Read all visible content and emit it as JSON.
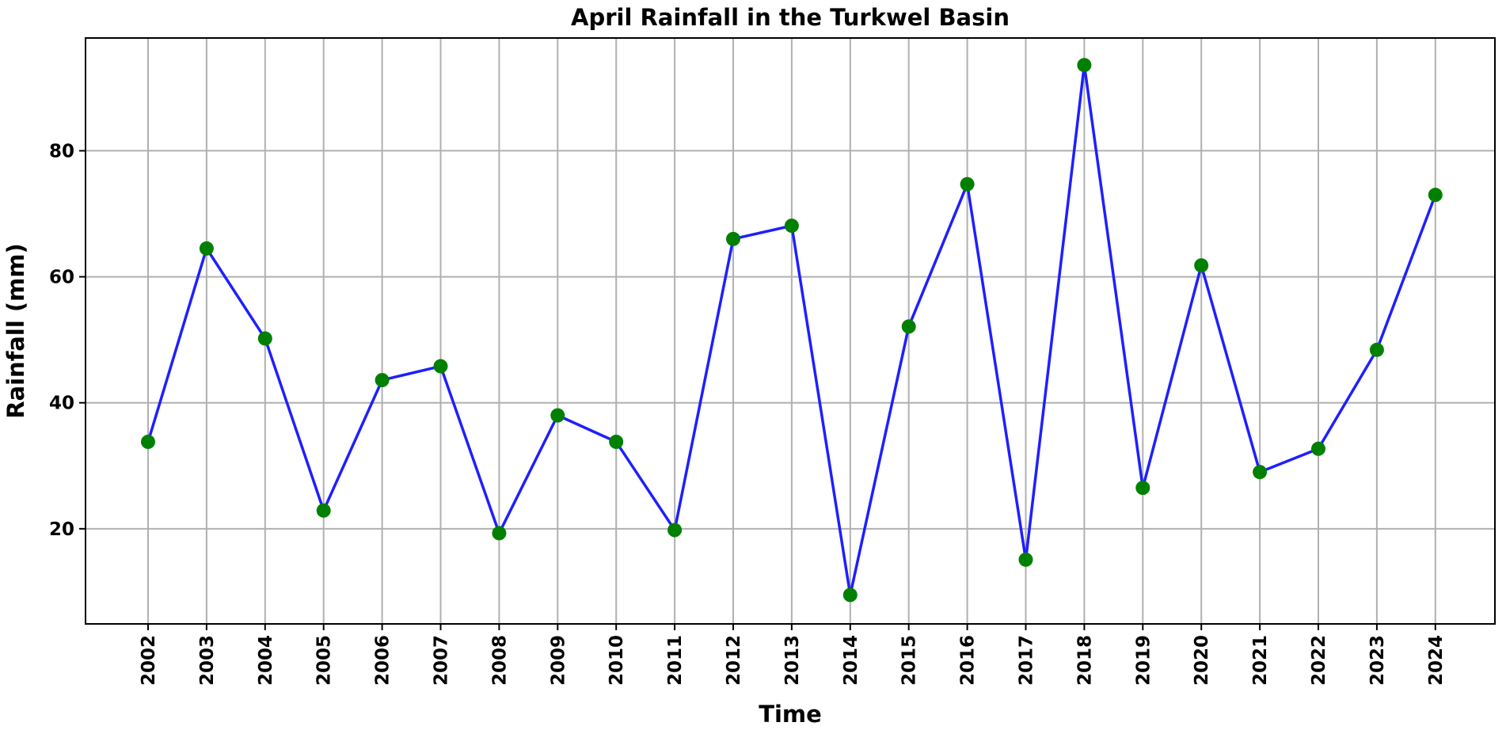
{
  "chart_data": {
    "type": "line",
    "title": "April Rainfall in the Turkwel Basin",
    "xlabel": "Time",
    "ylabel": "Rainfall (mm)",
    "x": [
      "2002",
      "2003",
      "2004",
      "2005",
      "2006",
      "2007",
      "2008",
      "2009",
      "2010",
      "2011",
      "2012",
      "2013",
      "2014",
      "2015",
      "2016",
      "2017",
      "2018",
      "2019",
      "2020",
      "2021",
      "2022",
      "2023",
      "2024"
    ],
    "series": [
      {
        "values": [
          33.8,
          64.5,
          50.2,
          22.9,
          43.6,
          45.8,
          19.3,
          38.0,
          33.8,
          19.8,
          66.0,
          68.1,
          9.5,
          52.1,
          74.7,
          15.1,
          93.6,
          26.5,
          61.8,
          29.0,
          32.7,
          48.4,
          73.0
        ],
        "line_color": "#1f1fff",
        "marker_color": "#008000"
      }
    ],
    "yticks": [
      20,
      40,
      60,
      80
    ],
    "ylim": [
      4.9,
      97.9
    ],
    "grid": true,
    "legend": "none"
  }
}
